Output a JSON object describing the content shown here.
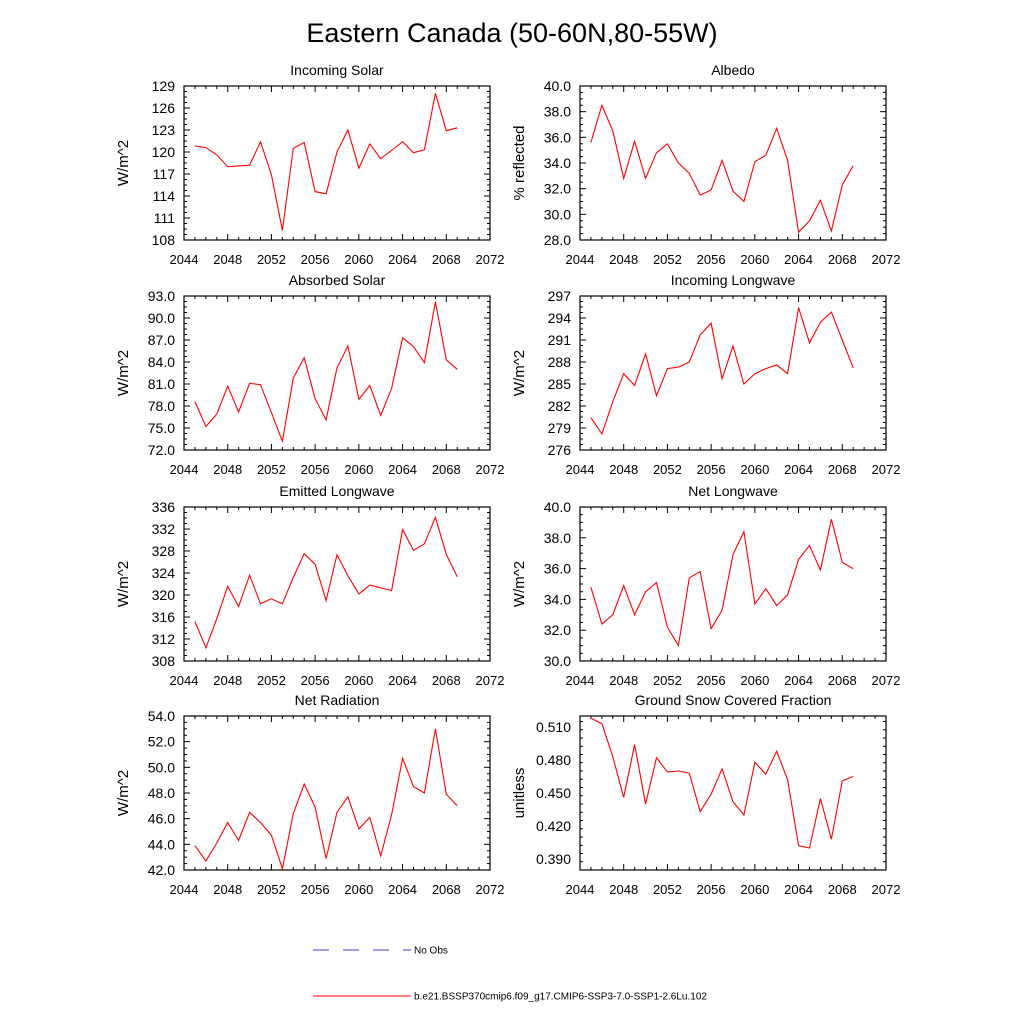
{
  "page_title": "Eastern Canada (50-60N,80-55W)",
  "legend": [
    {
      "label": "No Obs",
      "color": "#3a3ad0",
      "style": "dashed"
    },
    {
      "label": "b.e21.BSSP370cmip6.f09_g17.CMIP6-SSP3-7.0-SSP1-2.6Lu.102",
      "color": "#ff0000",
      "style": "solid"
    }
  ],
  "chart_data": [
    {
      "type": "line",
      "title": "Incoming Solar",
      "ylabel": "W/m^2",
      "xlim": [
        2044,
        2072
      ],
      "ylim": [
        108,
        129
      ],
      "xticks": [
        "2044",
        "2048",
        "2052",
        "2056",
        "2060",
        "2064",
        "2068",
        "2072"
      ],
      "yticks": [
        "108",
        "111",
        "114",
        "117",
        "120",
        "123",
        "126",
        "129"
      ],
      "x": [
        2045,
        2046,
        2047,
        2048,
        2049,
        2050,
        2051,
        2052,
        2053,
        2054,
        2055,
        2056,
        2057,
        2058,
        2059,
        2060,
        2061,
        2062,
        2063,
        2064,
        2065,
        2066,
        2067,
        2068,
        2069
      ],
      "series": [
        {
          "color": "#ff0000",
          "values": [
            120.8,
            120.6,
            119.6,
            118.0,
            118.1,
            118.2,
            121.4,
            116.9,
            109.3,
            120.5,
            121.3,
            114.6,
            114.3,
            120.0,
            123.0,
            117.8,
            121.1,
            119.1,
            120.2,
            121.4,
            119.9,
            120.3,
            128.0,
            122.9,
            123.3
          ]
        }
      ]
    },
    {
      "type": "line",
      "title": "Albedo",
      "ylabel": "% reflected",
      "xlim": [
        2044,
        2072
      ],
      "ylim": [
        28.0,
        40.0
      ],
      "xticks": [
        "2044",
        "2048",
        "2052",
        "2056",
        "2060",
        "2064",
        "2068",
        "2072"
      ],
      "yticks": [
        "28.0",
        "30.0",
        "32.0",
        "34.0",
        "36.0",
        "38.0",
        "40.0"
      ],
      "x": [
        2045,
        2046,
        2047,
        2048,
        2049,
        2050,
        2051,
        2052,
        2053,
        2054,
        2055,
        2056,
        2057,
        2058,
        2059,
        2060,
        2061,
        2062,
        2063,
        2064,
        2065,
        2066,
        2067,
        2068,
        2069
      ],
      "series": [
        {
          "color": "#ff0000",
          "values": [
            35.6,
            38.5,
            36.5,
            32.8,
            35.7,
            32.8,
            34.8,
            35.5,
            34.0,
            33.2,
            31.5,
            31.9,
            34.2,
            31.8,
            31.0,
            34.1,
            34.6,
            36.7,
            34.2,
            28.6,
            29.5,
            31.1,
            28.7,
            32.3,
            33.8
          ]
        }
      ]
    },
    {
      "type": "line",
      "title": "Absorbed Solar",
      "ylabel": "W/m^2",
      "xlim": [
        2044,
        2072
      ],
      "ylim": [
        72.0,
        93.0
      ],
      "xticks": [
        "2044",
        "2048",
        "2052",
        "2056",
        "2060",
        "2064",
        "2068",
        "2072"
      ],
      "yticks": [
        "72.0",
        "75.0",
        "78.0",
        "81.0",
        "84.0",
        "87.0",
        "90.0",
        "93.0"
      ],
      "x": [
        2045,
        2046,
        2047,
        2048,
        2049,
        2050,
        2051,
        2052,
        2053,
        2054,
        2055,
        2056,
        2057,
        2058,
        2059,
        2060,
        2061,
        2062,
        2063,
        2064,
        2065,
        2066,
        2067,
        2068,
        2069
      ],
      "series": [
        {
          "color": "#ff0000",
          "values": [
            78.6,
            75.2,
            76.9,
            80.7,
            77.2,
            81.1,
            80.9,
            77.1,
            73.2,
            81.8,
            84.6,
            79.0,
            76.1,
            83.2,
            86.2,
            78.9,
            80.8,
            76.7,
            80.4,
            87.3,
            86.1,
            83.9,
            92.2,
            84.3,
            83.0
          ]
        }
      ]
    },
    {
      "type": "line",
      "title": "Incoming Longwave",
      "ylabel": "W/m^2",
      "xlim": [
        2044,
        2072
      ],
      "ylim": [
        276,
        297
      ],
      "xticks": [
        "2044",
        "2048",
        "2052",
        "2056",
        "2060",
        "2064",
        "2068",
        "2072"
      ],
      "yticks": [
        "276",
        "279",
        "282",
        "285",
        "288",
        "291",
        "294",
        "297"
      ],
      "x": [
        2045,
        2046,
        2047,
        2048,
        2049,
        2050,
        2051,
        2052,
        2053,
        2054,
        2055,
        2056,
        2057,
        2058,
        2059,
        2060,
        2061,
        2062,
        2063,
        2064,
        2065,
        2066,
        2067,
        2068,
        2069
      ],
      "series": [
        {
          "color": "#ff0000",
          "values": [
            280.4,
            278.2,
            282.6,
            286.4,
            284.8,
            289.1,
            283.4,
            287.1,
            287.3,
            288.0,
            291.7,
            293.3,
            285.7,
            290.2,
            285.0,
            286.4,
            287.1,
            287.6,
            286.4,
            295.4,
            290.6,
            293.4,
            294.8,
            291.0,
            287.2
          ]
        }
      ]
    },
    {
      "type": "line",
      "title": "Emitted Longwave",
      "ylabel": "W/m^2",
      "xlim": [
        2044,
        2072
      ],
      "ylim": [
        308,
        336
      ],
      "xticks": [
        "2044",
        "2048",
        "2052",
        "2056",
        "2060",
        "2064",
        "2068",
        "2072"
      ],
      "yticks": [
        "308",
        "312",
        "316",
        "320",
        "324",
        "328",
        "332",
        "336"
      ],
      "x": [
        2045,
        2046,
        2047,
        2048,
        2049,
        2050,
        2051,
        2052,
        2053,
        2054,
        2055,
        2056,
        2057,
        2058,
        2059,
        2060,
        2061,
        2062,
        2063,
        2064,
        2065,
        2066,
        2067,
        2068,
        2069
      ],
      "series": [
        {
          "color": "#ff0000",
          "values": [
            315.2,
            310.4,
            315.7,
            321.6,
            317.9,
            323.6,
            318.4,
            319.3,
            318.4,
            323.2,
            327.5,
            325.6,
            319.0,
            327.3,
            323.5,
            320.2,
            321.8,
            321.3,
            320.8,
            331.9,
            328.1,
            329.3,
            334.1,
            327.4,
            323.3
          ]
        }
      ]
    },
    {
      "type": "line",
      "title": "Net Longwave",
      "ylabel": "W/m^2",
      "xlim": [
        2044,
        2072
      ],
      "ylim": [
        30.0,
        40.0
      ],
      "xticks": [
        "2044",
        "2048",
        "2052",
        "2056",
        "2060",
        "2064",
        "2068",
        "2072"
      ],
      "yticks": [
        "30.0",
        "32.0",
        "34.0",
        "36.0",
        "38.0",
        "40.0"
      ],
      "x": [
        2045,
        2046,
        2047,
        2048,
        2049,
        2050,
        2051,
        2052,
        2053,
        2054,
        2055,
        2056,
        2057,
        2058,
        2059,
        2060,
        2061,
        2062,
        2063,
        2064,
        2065,
        2066,
        2067,
        2068,
        2069
      ],
      "series": [
        {
          "color": "#ff0000",
          "values": [
            34.8,
            32.4,
            33.0,
            34.9,
            33.0,
            34.5,
            35.1,
            32.2,
            31.0,
            35.4,
            35.8,
            32.1,
            33.3,
            36.9,
            38.4,
            33.7,
            34.7,
            33.6,
            34.3,
            36.6,
            37.5,
            35.9,
            39.2,
            36.4,
            36.0
          ]
        }
      ]
    },
    {
      "type": "line",
      "title": "Net Radiation",
      "ylabel": "W/m^2",
      "xlim": [
        2044,
        2072
      ],
      "ylim": [
        42.0,
        54.0
      ],
      "xticks": [
        "2044",
        "2048",
        "2052",
        "2056",
        "2060",
        "2064",
        "2068",
        "2072"
      ],
      "yticks": [
        "42.0",
        "44.0",
        "46.0",
        "48.0",
        "50.0",
        "52.0",
        "54.0"
      ],
      "x": [
        2045,
        2046,
        2047,
        2048,
        2049,
        2050,
        2051,
        2052,
        2053,
        2054,
        2055,
        2056,
        2057,
        2058,
        2059,
        2060,
        2061,
        2062,
        2063,
        2064,
        2065,
        2066,
        2067,
        2068,
        2069
      ],
      "series": [
        {
          "color": "#ff0000",
          "values": [
            43.9,
            42.7,
            44.1,
            45.7,
            44.3,
            46.5,
            45.7,
            44.7,
            42.1,
            46.4,
            48.7,
            46.9,
            42.9,
            46.5,
            47.7,
            45.2,
            46.1,
            43.1,
            46.3,
            50.7,
            48.5,
            48.0,
            53.0,
            47.9,
            47.0
          ]
        }
      ]
    },
    {
      "type": "line",
      "title": "Ground Snow Covered Fraction",
      "ylabel": "unitless",
      "xlim": [
        2044,
        2072
      ],
      "ylim": [
        0.38,
        0.52
      ],
      "xticks": [
        "2044",
        "2048",
        "2052",
        "2056",
        "2060",
        "2064",
        "2068",
        "2072"
      ],
      "yticks": [
        "0.390",
        "0.420",
        "0.450",
        "0.480",
        "0.510"
      ],
      "x": [
        2045,
        2046,
        2047,
        2048,
        2049,
        2050,
        2051,
        2052,
        2053,
        2054,
        2055,
        2056,
        2057,
        2058,
        2059,
        2060,
        2061,
        2062,
        2063,
        2064,
        2065,
        2066,
        2067,
        2068,
        2069
      ],
      "series": [
        {
          "color": "#ff0000",
          "values": [
            0.518,
            0.513,
            0.483,
            0.446,
            0.494,
            0.44,
            0.482,
            0.469,
            0.47,
            0.468,
            0.433,
            0.449,
            0.472,
            0.442,
            0.43,
            0.478,
            0.467,
            0.488,
            0.462,
            0.402,
            0.4,
            0.445,
            0.408,
            0.461,
            0.465
          ]
        }
      ]
    }
  ]
}
